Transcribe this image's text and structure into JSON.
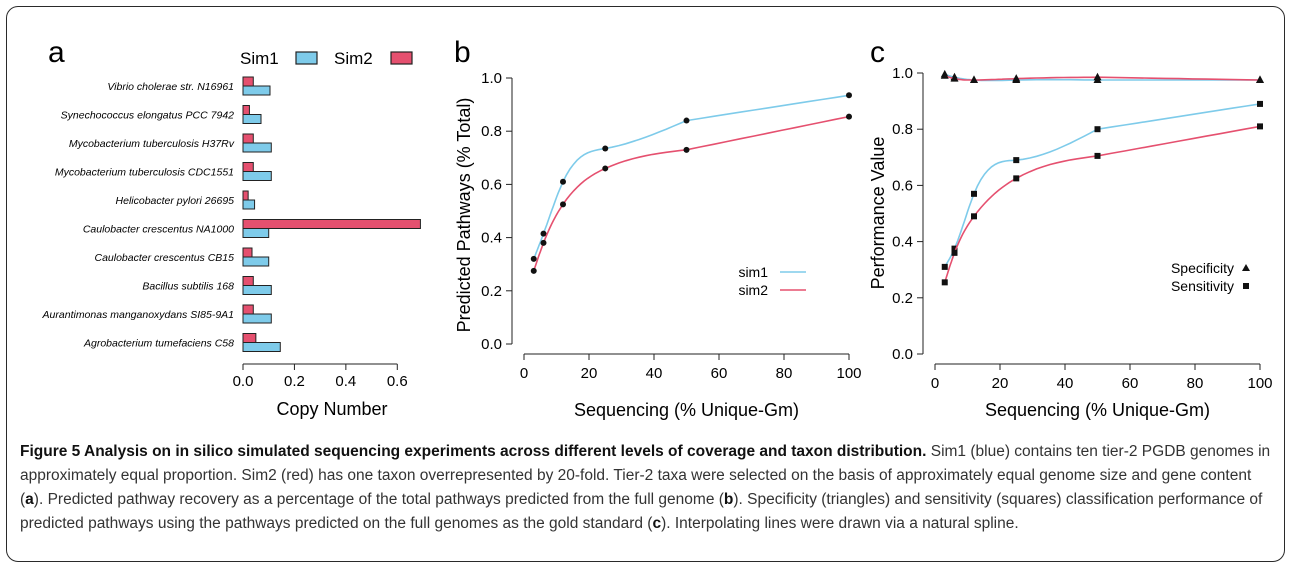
{
  "panel_labels": {
    "a": "a",
    "b": "b",
    "c": "c"
  },
  "colors": {
    "sim1": "#7ecbea",
    "sim2": "#e5506f",
    "marker": "#111111"
  },
  "chart_data": [
    {
      "panel": "a",
      "type": "bar",
      "orientation": "horizontal",
      "categories": [
        "Vibrio cholerae str. N16961",
        "Synechococcus elongatus PCC 7942",
        "Mycobacterium tuberculosis H37Rv",
        "Mycobacterium tuberculosis CDC1551",
        "Helicobacter pylori 26695",
        "Caulobacter crescentus NA1000",
        "Caulobacter crescentus CB15",
        "Bacillus subtilis 168",
        "Aurantimonas manganoxydans SI85-9A1",
        "Agrobacterium tumefaciens C58"
      ],
      "series": [
        {
          "name": "Sim1",
          "values": [
            0.105,
            0.07,
            0.11,
            0.11,
            0.045,
            0.1,
            0.1,
            0.11,
            0.11,
            0.145
          ]
        },
        {
          "name": "Sim2",
          "values": [
            0.04,
            0.025,
            0.04,
            0.04,
            0.02,
            0.69,
            0.035,
            0.04,
            0.04,
            0.05
          ]
        }
      ],
      "xlabel": "Copy Number",
      "xlim": [
        0,
        0.7
      ],
      "xticks": [
        "0.0",
        "0.2",
        "0.4",
        "0.6"
      ],
      "legend": "top"
    },
    {
      "panel": "b",
      "type": "line",
      "xlabel": "Sequencing (% Unique-Gm)",
      "ylabel": "Predicted Pathways (% Total)",
      "xlim": [
        0,
        100
      ],
      "ylim": [
        0,
        1
      ],
      "xticks": [
        "0",
        "20",
        "40",
        "60",
        "80",
        "100"
      ],
      "yticks": [
        "0.0",
        "0.2",
        "0.4",
        "0.6",
        "0.8",
        "1.0"
      ],
      "legend": "bottom-right",
      "series": [
        {
          "name": "sim1",
          "x": [
            3,
            6,
            12,
            25,
            50,
            100
          ],
          "y": [
            0.32,
            0.415,
            0.61,
            0.735,
            0.84,
            0.935
          ]
        },
        {
          "name": "sim2",
          "x": [
            3,
            6,
            12,
            25,
            50,
            100
          ],
          "y": [
            0.275,
            0.38,
            0.525,
            0.66,
            0.73,
            0.855
          ]
        }
      ]
    },
    {
      "panel": "c",
      "type": "scatter",
      "xlabel": "Sequencing (% Unique-Gm)",
      "ylabel": "Performance Value",
      "xlim": [
        0,
        100
      ],
      "ylim": [
        0,
        1
      ],
      "xticks": [
        "0",
        "20",
        "40",
        "60",
        "80",
        "100"
      ],
      "yticks": [
        "0.0",
        "0.2",
        "0.4",
        "0.6",
        "0.8",
        "1.0"
      ],
      "legend": "bottom-right",
      "legend_entries": [
        {
          "label": "Specificity",
          "marker": "triangle"
        },
        {
          "label": "Sensitivity",
          "marker": "square"
        }
      ],
      "series": [
        {
          "metric": "Specificity",
          "sim": "sim1",
          "x": [
            3,
            6,
            12,
            25,
            50,
            100
          ],
          "y": [
            0.995,
            0.985,
            0.975,
            0.975,
            0.975,
            0.975
          ]
        },
        {
          "metric": "Specificity",
          "sim": "sim2",
          "x": [
            3,
            6,
            12,
            25,
            50,
            100
          ],
          "y": [
            0.99,
            0.98,
            0.975,
            0.98,
            0.985,
            0.975
          ]
        },
        {
          "metric": "Sensitivity",
          "sim": "sim1",
          "x": [
            3,
            6,
            12,
            25,
            50,
            100
          ],
          "y": [
            0.31,
            0.375,
            0.57,
            0.69,
            0.8,
            0.89
          ]
        },
        {
          "metric": "Sensitivity",
          "sim": "sim2",
          "x": [
            3,
            6,
            12,
            25,
            50,
            100
          ],
          "y": [
            0.255,
            0.36,
            0.49,
            0.625,
            0.705,
            0.81
          ]
        }
      ]
    }
  ],
  "caption": {
    "title": "Figure 5 Analysis on in silico simulated sequencing experiments across different levels of coverage and taxon distribution.",
    "s1": " Sim1 (blue) contains ten tier-2 PGDB genomes in approximately equal proportion. Sim2 (red) has one taxon overrepresented by 20-fold. Tier-2 taxa were selected on the basis of approximately equal genome size and gene content (",
    "ref_a": "a",
    "s2": "). Predicted pathway recovery as a percentage of the total pathways predicted from the full genome (",
    "ref_b": "b",
    "s3": "). Specificity (triangles) and sensitivity (squares) classification performance of predicted pathways using the pathways predicted on the full genomes as the gold standard (",
    "ref_c": "c",
    "s4": "). Interpolating lines were drawn via a natural spline."
  }
}
